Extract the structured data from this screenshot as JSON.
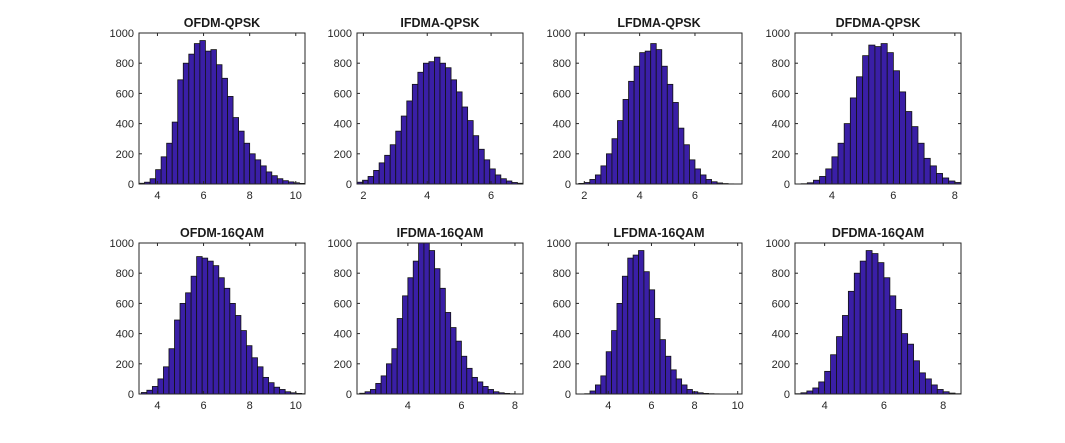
{
  "figure": {
    "background": "#ffffff",
    "bar_color": "#3a1fa6",
    "edge_color": "#111111"
  },
  "chart_data": [
    {
      "type": "bar",
      "title": "OFDM-QPSK",
      "xlabel": "",
      "ylabel": "",
      "xlim": [
        3.2,
        10.4
      ],
      "ylim": [
        0,
        1000
      ],
      "xticks": [
        4,
        6,
        8,
        10
      ],
      "yticks": [
        0,
        200,
        400,
        600,
        800,
        1000
      ],
      "bin_start": 3.2,
      "bin_width": 0.24,
      "values": [
        5,
        12,
        35,
        95,
        180,
        270,
        410,
        690,
        800,
        860,
        930,
        950,
        880,
        890,
        790,
        700,
        580,
        440,
        350,
        270,
        200,
        160,
        120,
        80,
        55,
        35,
        22,
        14,
        8,
        4
      ]
    },
    {
      "type": "bar",
      "title": "IFDMA-QPSK",
      "xlabel": "",
      "ylabel": "",
      "xlim": [
        1.8,
        7.0
      ],
      "ylim": [
        0,
        1000
      ],
      "xticks": [
        2,
        4,
        6
      ],
      "yticks": [
        0,
        200,
        400,
        600,
        800,
        1000
      ],
      "bin_start": 1.8,
      "bin_width": 0.1733,
      "values": [
        12,
        25,
        50,
        90,
        140,
        190,
        260,
        350,
        450,
        550,
        660,
        740,
        800,
        810,
        840,
        800,
        770,
        690,
        610,
        510,
        420,
        320,
        230,
        160,
        100,
        60,
        35,
        20,
        10,
        5
      ]
    },
    {
      "type": "bar",
      "title": "LFDMA-QPSK",
      "xlabel": "",
      "ylabel": "",
      "xlim": [
        1.7,
        7.7
      ],
      "ylim": [
        0,
        1000
      ],
      "xticks": [
        2,
        4,
        6
      ],
      "yticks": [
        0,
        200,
        400,
        600,
        800,
        1000
      ],
      "bin_start": 1.8,
      "bin_width": 0.2,
      "values": [
        4,
        10,
        30,
        60,
        120,
        200,
        300,
        420,
        560,
        680,
        780,
        870,
        880,
        930,
        890,
        780,
        660,
        540,
        370,
        260,
        160,
        100,
        60,
        30,
        15,
        7,
        3,
        1
      ]
    },
    {
      "type": "bar",
      "title": "DFDMA-QPSK",
      "xlabel": "",
      "ylabel": "",
      "xlim": [
        2.8,
        8.2
      ],
      "ylim": [
        0,
        1000
      ],
      "xticks": [
        4,
        6,
        8
      ],
      "yticks": [
        0,
        200,
        400,
        600,
        800,
        1000
      ],
      "bin_start": 3.0,
      "bin_width": 0.2,
      "values": [
        2,
        8,
        25,
        50,
        100,
        180,
        270,
        400,
        570,
        710,
        850,
        920,
        910,
        930,
        870,
        750,
        610,
        480,
        380,
        270,
        170,
        120,
        70,
        40,
        20,
        10,
        5,
        2
      ]
    },
    {
      "type": "bar",
      "title": "OFDM-16QAM",
      "xlabel": "",
      "ylabel": "",
      "xlim": [
        3.2,
        10.4
      ],
      "ylim": [
        0,
        1000
      ],
      "xticks": [
        4,
        6,
        8,
        10
      ],
      "yticks": [
        0,
        200,
        400,
        600,
        800,
        1000
      ],
      "bin_start": 3.3,
      "bin_width": 0.24,
      "values": [
        10,
        25,
        50,
        100,
        180,
        300,
        490,
        600,
        670,
        780,
        910,
        900,
        880,
        850,
        770,
        700,
        600,
        520,
        420,
        320,
        240,
        180,
        110,
        75,
        45,
        30,
        15,
        8,
        4,
        2
      ]
    },
    {
      "type": "bar",
      "title": "IFDMA-16QAM",
      "xlabel": "",
      "ylabel": "",
      "xlim": [
        2.1,
        8.3
      ],
      "ylim": [
        0,
        1000
      ],
      "xticks": [
        4,
        6,
        8
      ],
      "yticks": [
        0,
        200,
        400,
        600,
        800,
        1000
      ],
      "bin_start": 2.2,
      "bin_width": 0.2,
      "values": [
        5,
        15,
        30,
        70,
        120,
        200,
        300,
        500,
        650,
        770,
        880,
        1030,
        1020,
        950,
        830,
        700,
        540,
        440,
        350,
        250,
        170,
        110,
        80,
        50,
        30,
        15,
        8,
        4,
        2,
        1
      ]
    },
    {
      "type": "bar",
      "title": "LFDMA-16QAM",
      "xlabel": "",
      "ylabel": "",
      "xlim": [
        2.5,
        10.2
      ],
      "ylim": [
        0,
        1000
      ],
      "xticks": [
        4,
        6,
        8,
        10
      ],
      "yticks": [
        0,
        200,
        400,
        600,
        800,
        1000
      ],
      "bin_start": 2.9,
      "bin_width": 0.25,
      "values": [
        2,
        20,
        60,
        120,
        280,
        420,
        600,
        780,
        900,
        920,
        950,
        810,
        690,
        500,
        360,
        250,
        160,
        100,
        60,
        30,
        15,
        8,
        4,
        2,
        1
      ]
    },
    {
      "type": "bar",
      "title": "DFDMA-16QAM",
      "xlabel": "",
      "ylabel": "",
      "xlim": [
        3.0,
        8.6
      ],
      "ylim": [
        0,
        1000
      ],
      "xticks": [
        4,
        6,
        8
      ],
      "yticks": [
        0,
        200,
        400,
        600,
        800,
        1000
      ],
      "bin_start": 3.0,
      "bin_width": 0.2,
      "values": [
        2,
        8,
        20,
        40,
        80,
        150,
        260,
        380,
        520,
        680,
        800,
        880,
        950,
        930,
        870,
        770,
        650,
        560,
        400,
        330,
        220,
        140,
        100,
        60,
        30,
        15,
        6,
        2
      ]
    }
  ]
}
